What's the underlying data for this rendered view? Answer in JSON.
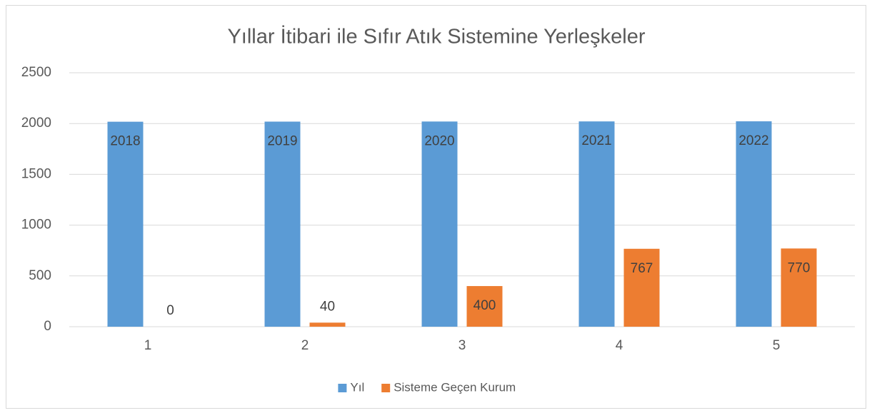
{
  "chart_data": {
    "type": "bar",
    "title": "Yıllar İtibari ile Sıfır Atık Sistemine Yerleşkeler",
    "categories": [
      "1",
      "2",
      "3",
      "4",
      "5"
    ],
    "series": [
      {
        "name": "Yıl",
        "color": "#5b9bd5",
        "values": [
          2018,
          2019,
          2020,
          2021,
          2022
        ]
      },
      {
        "name": "Sisteme Geçen Kurum",
        "color": "#ed7d31",
        "values": [
          0,
          40,
          400,
          767,
          770
        ]
      }
    ],
    "ylim": [
      0,
      2500
    ],
    "yticks": [
      0,
      500,
      1000,
      1500,
      2000,
      2500
    ],
    "grid": true,
    "legend": "bottom"
  }
}
